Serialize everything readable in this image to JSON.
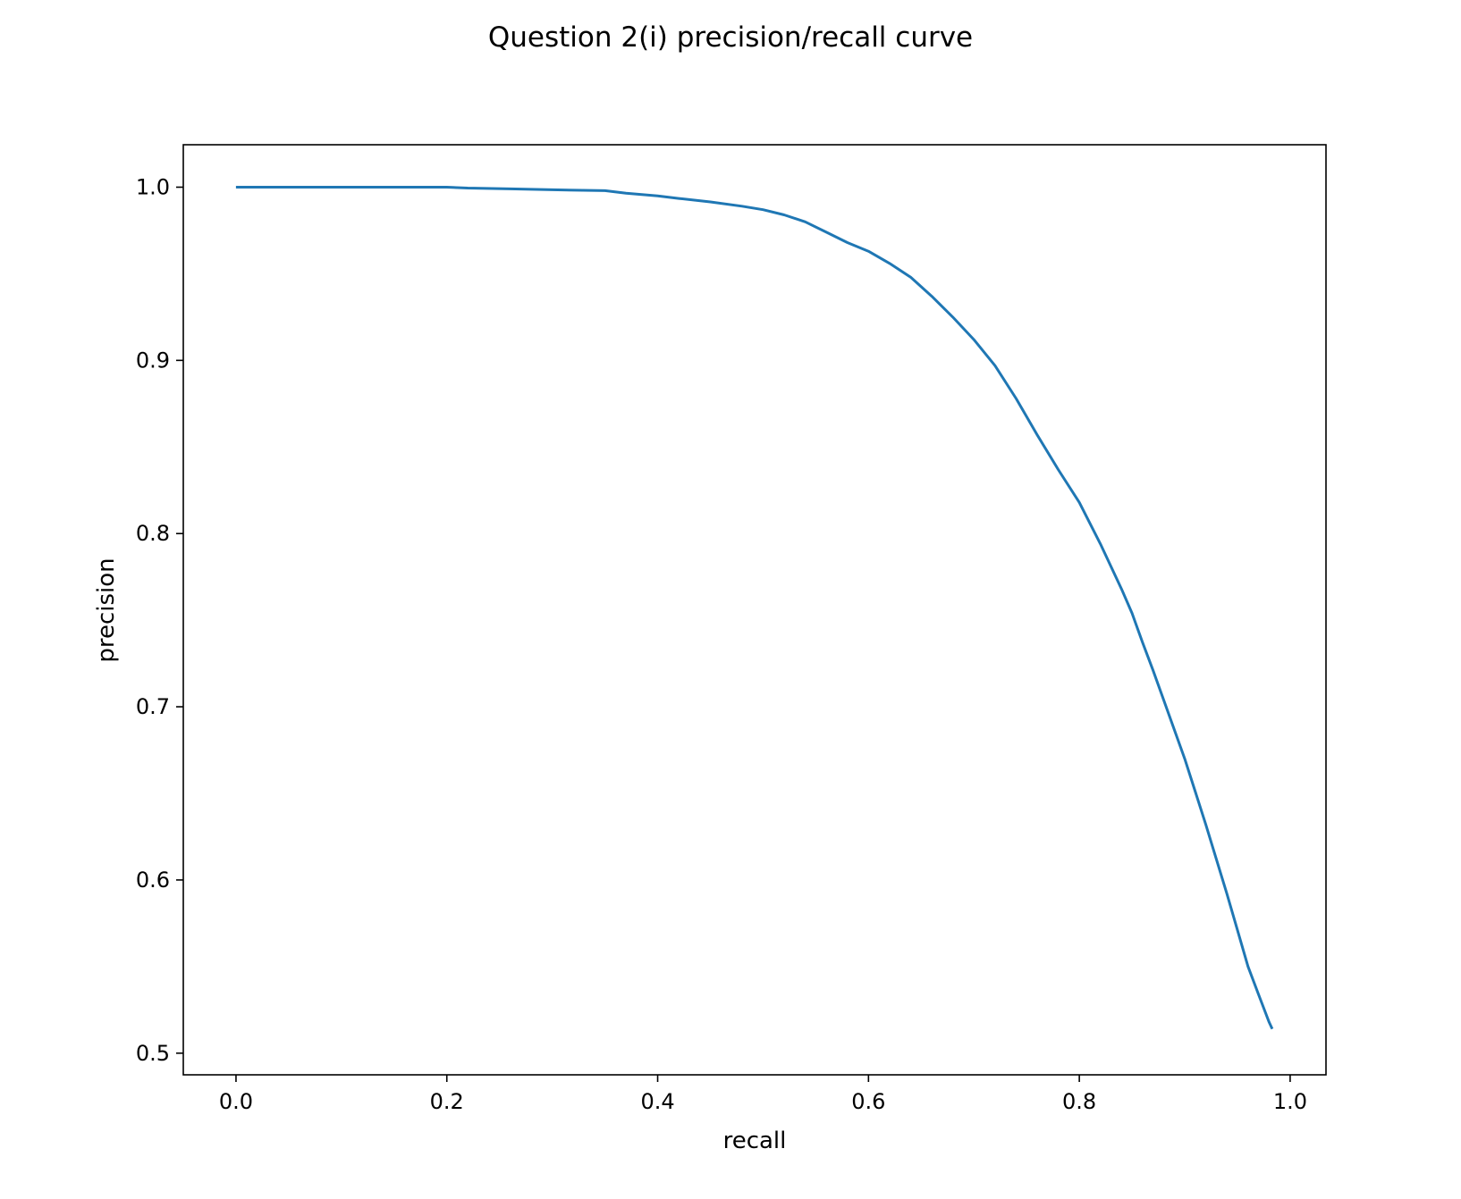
{
  "chart_data": {
    "type": "line",
    "title": "Question 2(i) precision/recall curve",
    "xlabel": "recall",
    "ylabel": "precision",
    "xlim": [
      -0.05,
      1.034
    ],
    "ylim": [
      0.4875,
      1.0245
    ],
    "xticks": [
      "0.0",
      "0.2",
      "0.4",
      "0.6",
      "0.8",
      "1.0"
    ],
    "yticks": [
      "0.5",
      "0.6",
      "0.7",
      "0.8",
      "0.9",
      "1.0"
    ],
    "grid": false,
    "series": [
      {
        "color": "#1f77b4",
        "x": [
          0.0,
          0.1,
          0.2,
          0.22,
          0.26,
          0.3,
          0.35,
          0.37,
          0.4,
          0.42,
          0.45,
          0.48,
          0.5,
          0.52,
          0.54,
          0.56,
          0.58,
          0.6,
          0.62,
          0.64,
          0.66,
          0.68,
          0.7,
          0.72,
          0.74,
          0.76,
          0.78,
          0.8,
          0.81,
          0.82,
          0.83,
          0.84,
          0.85,
          0.86,
          0.87,
          0.88,
          0.89,
          0.9,
          0.91,
          0.92,
          0.93,
          0.94,
          0.95,
          0.96,
          0.97,
          0.975,
          0.98,
          0.983
        ],
        "y": [
          1.0,
          1.0,
          1.0,
          0.9995,
          0.999,
          0.9985,
          0.998,
          0.9965,
          0.995,
          0.9935,
          0.9915,
          0.989,
          0.987,
          0.984,
          0.98,
          0.974,
          0.968,
          0.963,
          0.956,
          0.948,
          0.937,
          0.925,
          0.912,
          0.897,
          0.878,
          0.857,
          0.837,
          0.818,
          0.806,
          0.794,
          0.781,
          0.768,
          0.754,
          0.737,
          0.721,
          0.704,
          0.687,
          0.67,
          0.651,
          0.632,
          0.612,
          0.592,
          0.571,
          0.55,
          0.534,
          0.526,
          0.518,
          0.514
        ]
      }
    ]
  }
}
